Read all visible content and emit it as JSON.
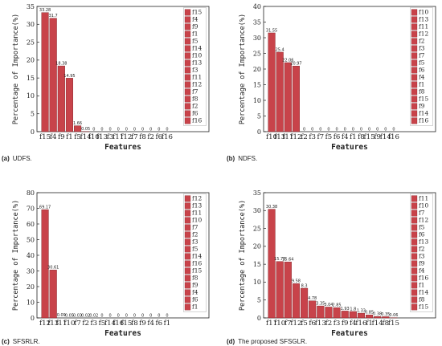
{
  "colors": {
    "bar": "#c8434a",
    "bar_edge": "#7a1d22",
    "axis": "#222222"
  },
  "chart_data": [
    {
      "type": "bar",
      "caption_label": "(a)",
      "caption_text": "UDFS.",
      "categories": [
        "f15",
        "f4",
        "f9",
        "f1",
        "f5",
        "f14",
        "f10",
        "f13",
        "f3",
        "f11",
        "f12",
        "f7",
        "f8",
        "f2",
        "f6",
        "f16"
      ],
      "values": [
        33.28,
        31.7,
        18.38,
        14.95,
        1.66,
        0.05,
        0,
        0,
        0,
        0,
        0,
        0,
        0,
        0,
        0,
        0
      ],
      "value_labels": [
        "33.28",
        "31.7",
        "18.38",
        "14.95",
        "1.66",
        "0.05",
        "0",
        "0",
        "0",
        "0",
        "0",
        "0",
        "0",
        "0",
        "0",
        "0"
      ],
      "legend": [
        "f15",
        "f4",
        "f9",
        "f1",
        "f5",
        "f14",
        "f10",
        "f13",
        "f3",
        "f11",
        "f12",
        "f7",
        "f8",
        "f2",
        "f6",
        "f16"
      ],
      "xlabel": "Features",
      "ylabel": "Percentage of Importance(%)",
      "ylim": [
        0,
        35
      ],
      "yticks": [
        0,
        5,
        10,
        15,
        20,
        25,
        30,
        35
      ]
    },
    {
      "type": "bar",
      "caption_label": "(b)",
      "caption_text": "NDFS.",
      "categories": [
        "f10",
        "f13",
        "f11",
        "f12",
        "f2",
        "f3",
        "f7",
        "f5",
        "f6",
        "f4",
        "f1",
        "f8",
        "f15",
        "f9",
        "f14",
        "f16"
      ],
      "values": [
        31.55,
        25.4,
        22.06,
        20.97,
        0,
        0,
        0,
        0,
        0,
        0,
        0,
        0,
        0,
        0,
        0,
        0
      ],
      "value_labels": [
        "31.55",
        "25.4",
        "22.06",
        "20.97",
        "0",
        "0",
        "0",
        "0",
        "0",
        "0",
        "0",
        "0",
        "0",
        "0",
        "0",
        "0"
      ],
      "legend": [
        "f10",
        "f13",
        "f11",
        "f12",
        "f2",
        "f3",
        "f7",
        "f5",
        "f6",
        "f4",
        "f1",
        "f8",
        "f15",
        "f9",
        "f14",
        "f16"
      ],
      "xlabel": "Features",
      "ylabel": "Percentage of Importance(%)",
      "ylim": [
        0,
        40
      ],
      "yticks": [
        0,
        5,
        10,
        15,
        20,
        25,
        30,
        35,
        40
      ]
    },
    {
      "type": "bar",
      "caption_label": "(c)",
      "caption_text": "SFSRLR.",
      "categories": [
        "f12",
        "f13",
        "f11",
        "f10",
        "f7",
        "f2",
        "f3",
        "f5",
        "f14",
        "f16",
        "f15",
        "f8",
        "f9",
        "f4",
        "f6",
        "f1"
      ],
      "values": [
        69.17,
        30.61,
        0.09,
        0.05,
        0.03,
        0.02,
        0.02,
        0,
        0,
        0,
        0,
        0,
        0,
        0,
        0,
        0
      ],
      "value_labels": [
        "69.17",
        "30.61",
        "0.09",
        "0.05",
        "0.03",
        "0.02",
        "0.02",
        "0",
        "0",
        "0",
        "0",
        "0",
        "0",
        "0",
        "0",
        "0"
      ],
      "legend": [
        "f12",
        "f13",
        "f11",
        "f10",
        "f7",
        "f2",
        "f3",
        "f5",
        "f14",
        "f16",
        "f15",
        "f8",
        "f9",
        "f4",
        "f6",
        "f1"
      ],
      "xlabel": "Features",
      "ylabel": "Percentage of Importance(%)",
      "ylim": [
        0,
        80
      ],
      "yticks": [
        0,
        10,
        20,
        30,
        40,
        50,
        60,
        70,
        80
      ]
    },
    {
      "type": "bar",
      "caption_label": "(d)",
      "caption_text": "The proposed SFSGLR.",
      "categories": [
        "f11",
        "f10",
        "f7",
        "f12",
        "f5",
        "f6",
        "f13",
        "f2",
        "f3",
        "f9",
        "f4",
        "f16",
        "f1",
        "f14",
        "f8",
        "f15"
      ],
      "values": [
        30.38,
        15.78,
        15.64,
        9.58,
        8.3,
        4.78,
        3.35,
        3.04,
        2.85,
        1.93,
        1.8,
        1.33,
        0.85,
        0.38,
        0.35,
        0.06
      ],
      "value_labels": [
        "30.38",
        "15.78",
        "15.64",
        "9.58",
        "8.3",
        "4.78",
        "3.35",
        "3.04",
        "2.85",
        "1.93",
        "1.8",
        "1.33",
        "0.85",
        "0.38",
        "0.35",
        "0.06"
      ],
      "legend": [
        "f11",
        "f10",
        "f7",
        "f12",
        "f5",
        "f6",
        "f13",
        "f2",
        "f3",
        "f9",
        "f4",
        "f16",
        "f1",
        "f14",
        "f8",
        "f15"
      ],
      "xlabel": "Features",
      "ylabel": "Percentage of Importance(%)",
      "ylim": [
        0,
        35
      ],
      "yticks": [
        0,
        5,
        10,
        15,
        20,
        25,
        30,
        35
      ]
    }
  ]
}
